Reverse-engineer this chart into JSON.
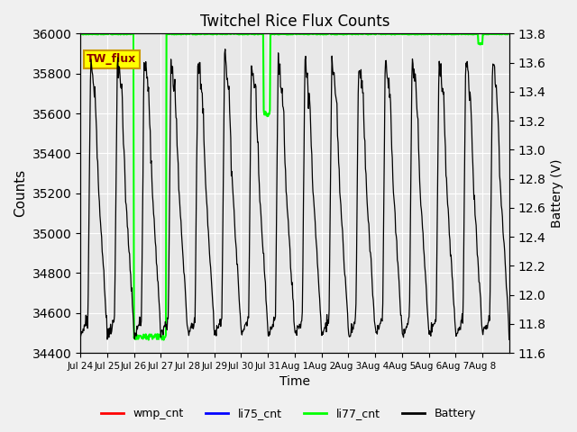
{
  "title": "Twitchel Rice Flux Counts",
  "xlabel": "Time",
  "ylabel_left": "Counts",
  "ylabel_right": "Battery (V)",
  "ylim_left": [
    34400,
    36000
  ],
  "ylim_right": [
    11.6,
    13.8
  ],
  "yticks_left": [
    34400,
    34600,
    34800,
    35000,
    35200,
    35400,
    35600,
    35800,
    36000
  ],
  "yticks_right": [
    11.6,
    11.8,
    12.0,
    12.2,
    12.4,
    12.6,
    12.8,
    13.0,
    13.2,
    13.4,
    13.6,
    13.8
  ],
  "xtick_labels": [
    "Jul 24",
    "Jul 25",
    "Jul 26",
    "Jul 27",
    "Jul 28",
    "Jul 29",
    "Jul 30",
    "Jul 31",
    "Aug 1",
    "Aug 2",
    "Aug 3",
    "Aug 4",
    "Aug 5",
    "Aug 6",
    "Aug 7",
    "Aug 8"
  ],
  "annotation_label": "TW_flux",
  "background_color": "#e8e8e8",
  "plot_bg_color": "#e8e8e8",
  "li77_color": "#00ff00",
  "battery_color": "#000000",
  "wmp_color": "#ff0000",
  "li75_color": "#0000ff",
  "legend_entries": [
    "wmp_cnt",
    "li75_cnt",
    "li77_cnt",
    "Battery"
  ],
  "legend_colors": [
    "#ff0000",
    "#0000ff",
    "#00ff00",
    "#000000"
  ]
}
